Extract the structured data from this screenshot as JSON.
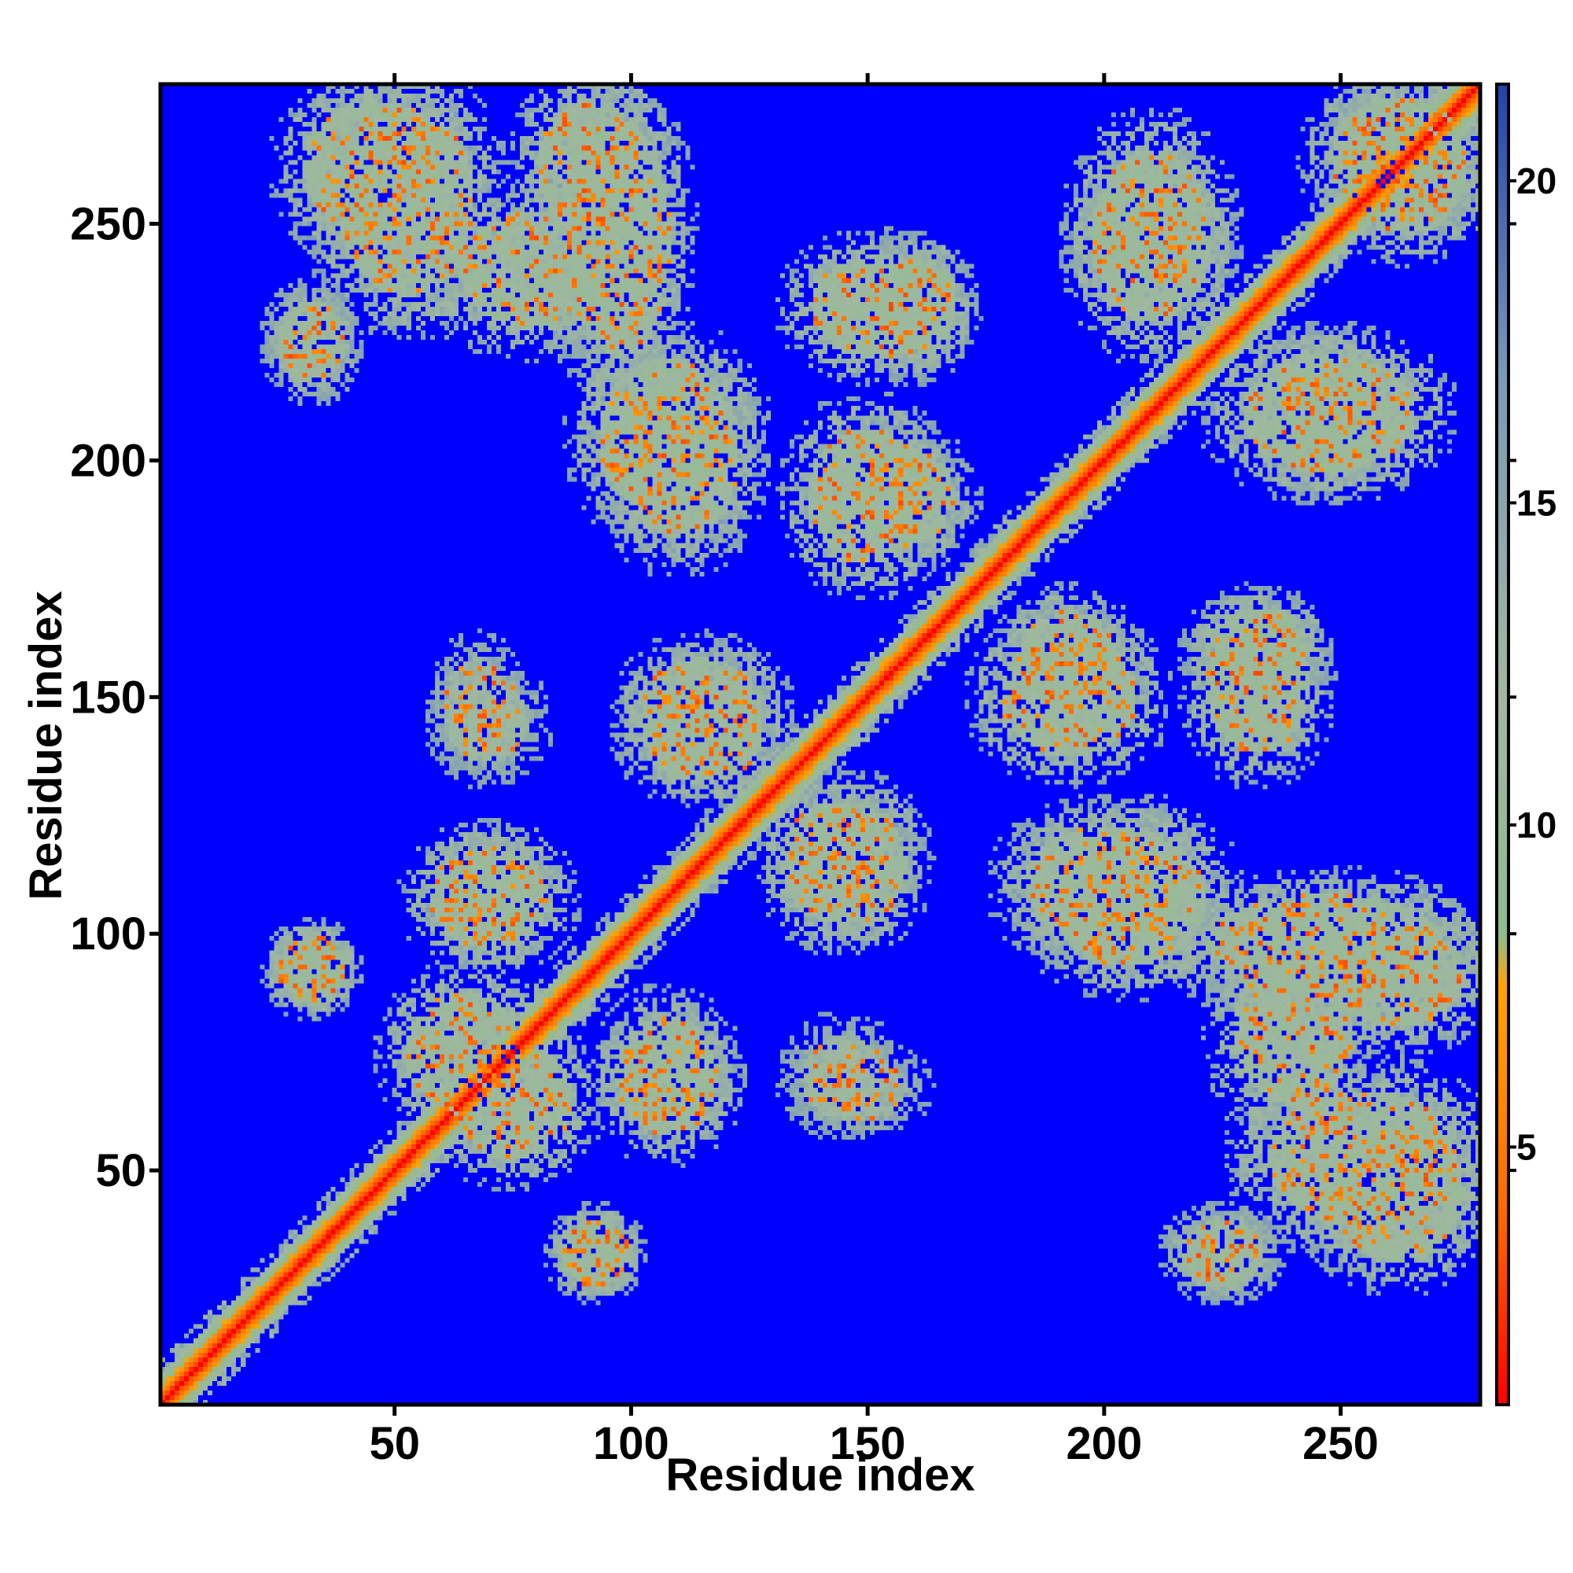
{
  "chart_data": {
    "type": "heatmap",
    "title": "",
    "xlabel": "Residue index",
    "ylabel": "Residue index",
    "n_residues": 279,
    "xlim": [
      0.5,
      279.5
    ],
    "ylim": [
      0.5,
      279.5
    ],
    "x_ticks": [
      50,
      100,
      150,
      200,
      250
    ],
    "y_ticks": [
      50,
      100,
      150,
      200,
      250
    ],
    "colorbar": {
      "range": [
        1,
        21.5
      ],
      "ticks": [
        5,
        10,
        15,
        20
      ],
      "colors": [
        {
          "value": 1,
          "color": "#ff0000"
        },
        {
          "value": 4,
          "color": "#ff6a00"
        },
        {
          "value": 7.5,
          "color": "#ffa500"
        },
        {
          "value": 8.3,
          "color": "#8fbc8f"
        },
        {
          "value": 12,
          "color": "#a0b8a0"
        },
        {
          "value": 17,
          "color": "#7a9ab8"
        },
        {
          "value": 21.5,
          "color": "#2244aa"
        }
      ],
      "background_color": "#0000ff",
      "background_value": 21.5
    },
    "diagonal": {
      "width": 6,
      "description_values": "distance grows from ~1 on the diagonal to ~12 at |i-j|=6"
    },
    "contact_regions": [
      {
        "x": [
          28,
          62
        ],
        "y": [
          245,
          279
        ],
        "level": 11
      },
      {
        "x": [
          78,
          105
        ],
        "y": [
          245,
          279
        ],
        "level": 11
      },
      {
        "x": [
          60,
          100
        ],
        "y": [
          225,
          255
        ],
        "level": 11
      },
      {
        "x": [
          90,
          125
        ],
        "y": [
          185,
          225
        ],
        "level": 11
      },
      {
        "x": [
          150,
          170
        ],
        "y": [
          220,
          245
        ],
        "level": 11
      },
      {
        "x": [
          145,
          170
        ],
        "y": [
          180,
          205
        ],
        "level": 11
      },
      {
        "x": [
          25,
          40
        ],
        "y": [
          215,
          235
        ],
        "level": 11
      },
      {
        "x": [
          60,
          75
        ],
        "y": [
          135,
          160
        ],
        "level": 12
      },
      {
        "x": [
          100,
          130
        ],
        "y": [
          135,
          160
        ],
        "level": 11
      },
      {
        "x": [
          60,
          80
        ],
        "y": [
          95,
          120
        ],
        "level": 11
      },
      {
        "x": [
          25,
          40
        ],
        "y": [
          85,
          100
        ],
        "level": 11
      },
      {
        "x": [
          50,
          80
        ],
        "y": [
          60,
          90
        ],
        "level": 11
      },
      {
        "x": [
          95,
          120
        ],
        "y": [
          55,
          85
        ],
        "level": 11
      },
      {
        "x": [
          130,
          155
        ],
        "y": [
          100,
          130
        ],
        "level": 11
      },
      {
        "x": [
          135,
          155
        ],
        "y": [
          60,
          80
        ],
        "level": 12
      },
      {
        "x": [
          85,
          100
        ],
        "y": [
          25,
          40
        ],
        "level": 11
      },
      {
        "x": [
          175,
          210
        ],
        "y": [
          135,
          165
        ],
        "level": 11
      },
      {
        "x": [
          220,
          245
        ],
        "y": [
          135,
          170
        ],
        "level": 11
      },
      {
        "x": [
          180,
          220
        ],
        "y": [
          95,
          125
        ],
        "level": 11
      },
      {
        "x": [
          215,
          279
        ],
        "y": [
          85,
          110
        ],
        "level": 11
      },
      {
        "x": [
          230,
          279
        ],
        "y": [
          35,
          70
        ],
        "level": 11
      },
      {
        "x": [
          215,
          235
        ],
        "y": [
          25,
          40
        ],
        "level": 12
      },
      {
        "x": [
          195,
          225
        ],
        "y": [
          225,
          270
        ],
        "level": 11
      },
      {
        "x": [
          235,
          260
        ],
        "y": [
          195,
          225
        ],
        "level": 11
      },
      {
        "x": [
          250,
          279
        ],
        "y": [
          245,
          279
        ],
        "level": 11
      }
    ]
  }
}
